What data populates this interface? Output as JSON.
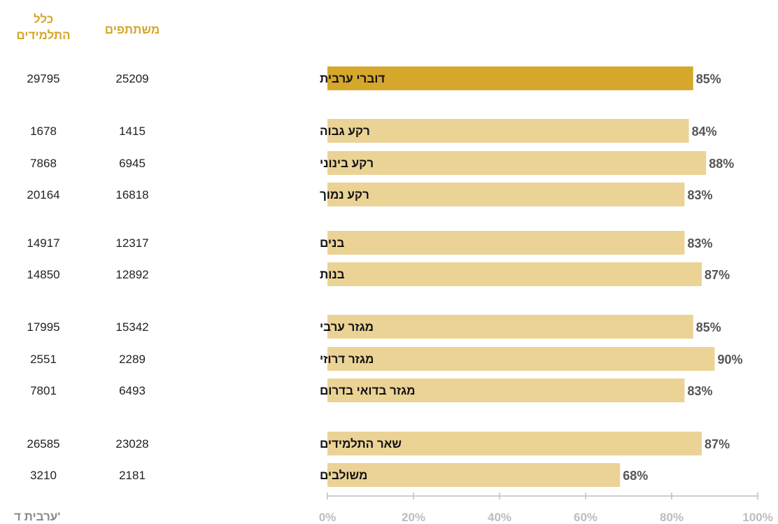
{
  "headers": {
    "total_line1": "כלל",
    "total_line2": "התלמידים",
    "participants": "משתתפים"
  },
  "footer_label": "ערבית ד'",
  "colors": {
    "highlight_bar": "#d5a72b",
    "bar": "#ebd396",
    "header_text": "#d4a62a"
  },
  "chart_data": {
    "type": "bar",
    "orientation": "horizontal",
    "title": "",
    "xlabel": "",
    "ylabel": "",
    "xlim": [
      0,
      100
    ],
    "x_ticks": [
      "0%",
      "20%",
      "40%",
      "60%",
      "80%",
      "100%"
    ],
    "grid": false,
    "categories": [
      "דוברי ערבית",
      "רקע גבוה",
      "רקע בינוני",
      "רקע נמוך",
      "בנים",
      "בנות",
      "מגזר ערבי",
      "מגזר דרוזי",
      "מגזר בדואי בדרום",
      "שאר התלמידים",
      "משולבים"
    ],
    "values": [
      85,
      84,
      88,
      83,
      83,
      87,
      85,
      90,
      83,
      87,
      68
    ],
    "value_labels": [
      "85%",
      "84%",
      "88%",
      "83%",
      "83%",
      "87%",
      "85%",
      "90%",
      "83%",
      "87%",
      "68%"
    ],
    "participants": [
      "25209",
      "1415",
      "6945",
      "16818",
      "12317",
      "12892",
      "15342",
      "2289",
      "6493",
      "23028",
      "2181"
    ],
    "total_students": [
      "29795",
      "1678",
      "7868",
      "20164",
      "14917",
      "14850",
      "17995",
      "2551",
      "7801",
      "26585",
      "3210"
    ],
    "highlighted": [
      true,
      false,
      false,
      false,
      false,
      false,
      false,
      false,
      false,
      false,
      false
    ]
  }
}
